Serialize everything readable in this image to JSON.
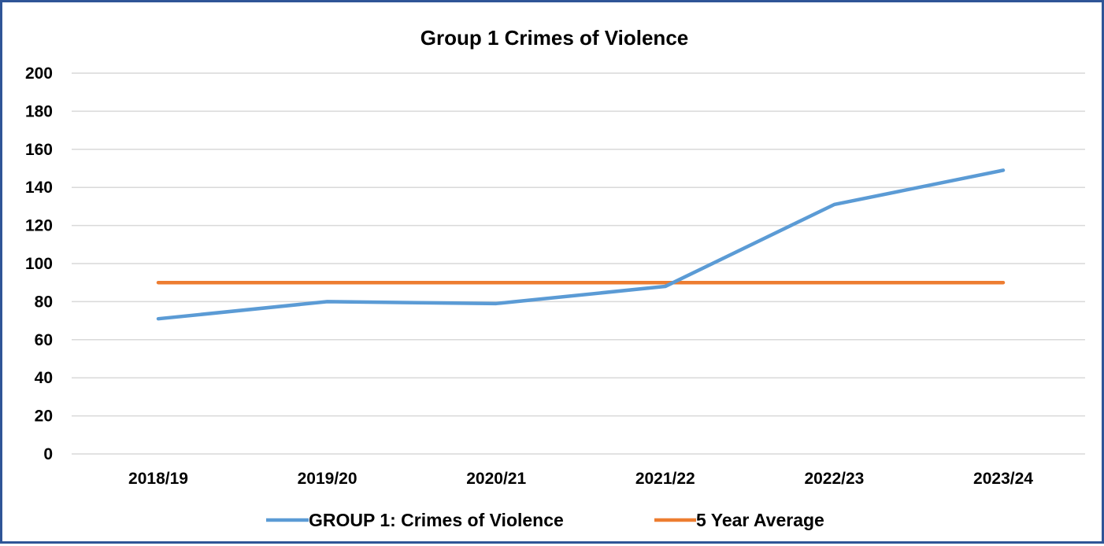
{
  "chart_data": {
    "type": "line",
    "title": "Group 1 Crimes of Violence",
    "xlabel": "",
    "ylabel": "",
    "categories": [
      "2018/19",
      "2019/20",
      "2020/21",
      "2021/22",
      "2022/23",
      "2023/24"
    ],
    "y_ticks": [
      "0",
      "20",
      "40",
      "60",
      "80",
      "100",
      "120",
      "140",
      "160",
      "180",
      "200"
    ],
    "ylim": [
      0,
      200
    ],
    "grid": true,
    "legend_position": "bottom",
    "series": [
      {
        "name": "GROUP 1: Crimes of Violence",
        "color": "#5b9bd5",
        "values": [
          71,
          80,
          79,
          88,
          131,
          149
        ]
      },
      {
        "name": "5 Year Average",
        "color": "#ed7d31",
        "values": [
          90,
          90,
          90,
          90,
          90,
          90
        ]
      }
    ]
  }
}
